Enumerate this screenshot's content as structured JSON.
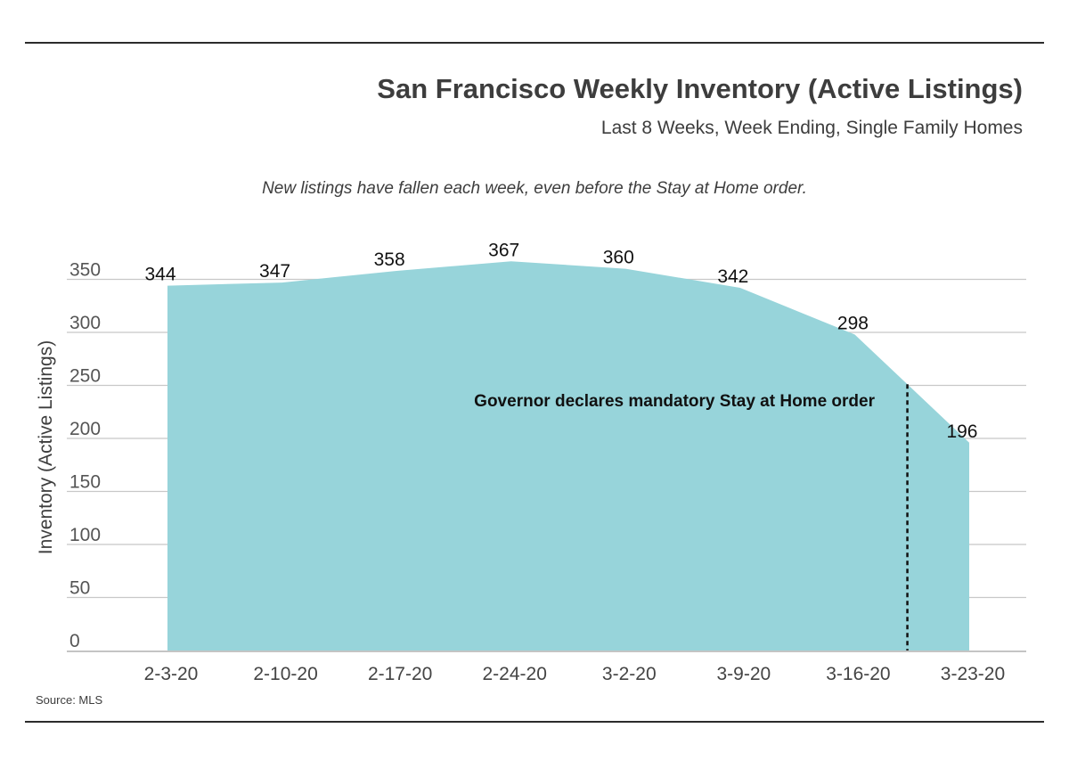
{
  "title": "San Francisco Weekly Inventory (Active Listings)",
  "subtitle": "Last 8 Weeks, Week Ending, Single Family Homes",
  "note": "New listings have fallen each week, even before the Stay at Home order.",
  "source": "Source: MLS",
  "chart_data": {
    "type": "area",
    "categories": [
      "2-3-20",
      "2-10-20",
      "2-17-20",
      "2-24-20",
      "3-2-20",
      "3-9-20",
      "3-16-20",
      "3-23-20"
    ],
    "values": [
      344,
      347,
      358,
      367,
      360,
      342,
      298,
      196
    ],
    "data_labels": [
      "344",
      "347",
      "358",
      "367",
      "360",
      "342",
      "298",
      "196"
    ],
    "ylabel": "Inventory (Active Listings)",
    "ylim": [
      0,
      350
    ],
    "yticks": [
      "0",
      "50",
      "100",
      "150",
      "200",
      "250",
      "300",
      "350"
    ],
    "grid": true,
    "fill_color": "#97d4da",
    "annotation": {
      "text": "Governor declares mandatory Stay at Home order",
      "between": [
        "3-16-20",
        "3-23-20"
      ],
      "line_style": "dashed"
    }
  }
}
